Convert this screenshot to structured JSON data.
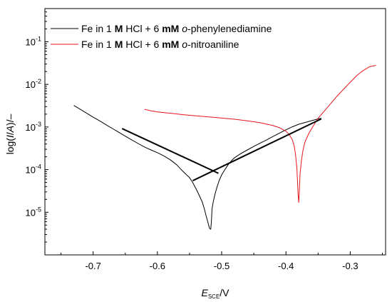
{
  "chart_data": {
    "type": "line",
    "xlabel": {
      "main": "E",
      "sub": "SCE",
      "unit": "/V"
    },
    "ylabel": {
      "pre": "log(",
      "var": "I",
      "slash": "/",
      "unit": "A",
      "post": ")/–"
    },
    "xlim": [
      -0.775,
      -0.245
    ],
    "ylim": [
      1e-06,
      0.6
    ],
    "yscale": "log",
    "x_ticks": [
      -0.7,
      -0.6,
      -0.5,
      -0.4,
      -0.3
    ],
    "x_tick_labels": [
      "-0.7",
      "-0.6",
      "-0.5",
      "-0.4",
      "-0.3"
    ],
    "y_ticks": [
      {
        "value": 1e-05,
        "base": "10",
        "exp": "-5"
      },
      {
        "value": 0.0001,
        "base": "10",
        "exp": "-4"
      },
      {
        "value": 0.001,
        "base": "10",
        "exp": "-3"
      },
      {
        "value": 0.01,
        "base": "10",
        "exp": "-2"
      },
      {
        "value": 0.1,
        "base": "10",
        "exp": "-1"
      }
    ],
    "legend": {
      "placement": "top-left",
      "entries": [
        {
          "series": 0,
          "parts": [
            {
              "t": "Fe in 1 ",
              "s": "n"
            },
            {
              "t": "M",
              "s": "b"
            },
            {
              "t": " HCl + 6 ",
              "s": "n"
            },
            {
              "t": "mM",
              "s": "b"
            },
            {
              "t": " ",
              "s": "n"
            },
            {
              "t": "o",
              "s": "i"
            },
            {
              "t": "-phenylenediamine",
              "s": "n"
            }
          ]
        },
        {
          "series": 1,
          "parts": [
            {
              "t": "Fe in 1 ",
              "s": "n"
            },
            {
              "t": "M",
              "s": "b"
            },
            {
              "t": " HCl + 6 ",
              "s": "n"
            },
            {
              "t": "mM",
              "s": "b"
            },
            {
              "t": " ",
              "s": "n"
            },
            {
              "t": "o",
              "s": "i"
            },
            {
              "t": "-nitroaniline",
              "s": "n"
            }
          ]
        }
      ]
    },
    "series": [
      {
        "color": "#000000",
        "x": [
          -0.73,
          -0.72,
          -0.71,
          -0.7,
          -0.69,
          -0.68,
          -0.67,
          -0.66,
          -0.65,
          -0.64,
          -0.63,
          -0.62,
          -0.61,
          -0.6,
          -0.59,
          -0.58,
          -0.57,
          -0.56,
          -0.55,
          -0.545,
          -0.54,
          -0.535,
          -0.53,
          -0.527,
          -0.524,
          -0.521,
          -0.519,
          -0.517,
          -0.516,
          -0.515,
          -0.513,
          -0.51,
          -0.507,
          -0.504,
          -0.5,
          -0.495,
          -0.49,
          -0.485,
          -0.48,
          -0.47,
          -0.46,
          -0.45,
          -0.44,
          -0.43,
          -0.42,
          -0.41,
          -0.4,
          -0.39,
          -0.38,
          -0.37,
          -0.36,
          -0.35,
          -0.345
        ],
        "y": [
          0.0032,
          0.0026,
          0.0021,
          0.0017,
          0.0014,
          0.00113,
          0.00092,
          0.00075,
          0.00061,
          0.0005,
          0.00041,
          0.00034,
          0.00029,
          0.00025,
          0.00021,
          0.00017,
          0.00013,
          9e-05,
          6.5e-05,
          5e-05,
          3.6e-05,
          2.5e-05,
          1.7e-05,
          1.2e-05,
          8e-06,
          5.5e-06,
          4.2e-06,
          4e-06,
          6e-06,
          1.2e-05,
          1.8e-05,
          2.8e-05,
          4e-05,
          5.5e-05,
          7.5e-05,
          0.0001,
          0.00013,
          0.00016,
          0.00019,
          0.00024,
          0.00029,
          0.00035,
          0.00042,
          0.0005,
          0.0006,
          0.00072,
          0.00086,
          0.00101,
          0.00116,
          0.00128,
          0.00141,
          0.00155,
          0.0016
        ]
      },
      {
        "color": "#e8141b",
        "x": [
          -0.62,
          -0.61,
          -0.6,
          -0.58,
          -0.56,
          -0.54,
          -0.52,
          -0.5,
          -0.48,
          -0.46,
          -0.44,
          -0.42,
          -0.41,
          -0.4,
          -0.395,
          -0.39,
          -0.387,
          -0.385,
          -0.383,
          -0.382,
          -0.381,
          -0.38,
          -0.379,
          -0.378,
          -0.376,
          -0.374,
          -0.372,
          -0.37,
          -0.365,
          -0.36,
          -0.355,
          -0.35,
          -0.34,
          -0.33,
          -0.32,
          -0.31,
          -0.3,
          -0.29,
          -0.28,
          -0.27,
          -0.26
        ],
        "y": [
          0.0026,
          0.0024,
          0.00225,
          0.0021,
          0.00195,
          0.00182,
          0.00172,
          0.00162,
          0.00152,
          0.0014,
          0.00126,
          0.00108,
          0.00096,
          0.0008,
          0.00067,
          0.0005,
          0.00035,
          0.00022,
          0.00011,
          5.5e-05,
          2.5e-05,
          1.7e-05,
          3.5e-05,
          8e-05,
          0.00016,
          0.00026,
          0.00036,
          0.00046,
          0.00068,
          0.00092,
          0.00122,
          0.0016,
          0.0024,
          0.0036,
          0.0054,
          0.0078,
          0.0112,
          0.016,
          0.021,
          0.026,
          0.028
        ]
      }
    ],
    "tafel_lines": [
      {
        "color": "#000000",
        "x": [
          -0.655,
          -0.505
        ],
        "y": [
          0.00092,
          8.2e-05
        ]
      },
      {
        "color": "#000000",
        "x": [
          -0.545,
          -0.345
        ],
        "y": [
          5.5e-05,
          0.00155
        ]
      }
    ]
  }
}
